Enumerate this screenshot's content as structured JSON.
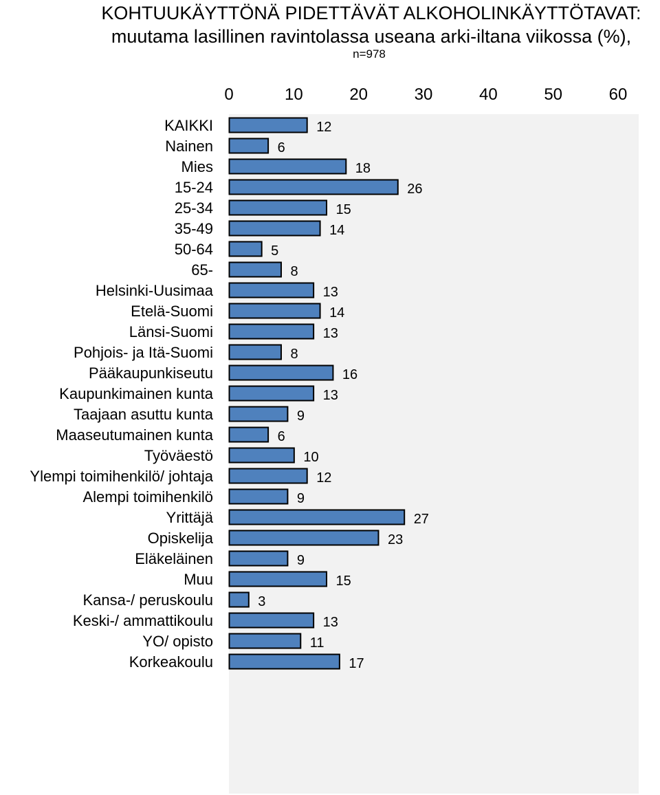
{
  "chart_data": {
    "type": "bar",
    "orientation": "horizontal",
    "title": "KOHTUUKÄYTTÖNÄ PIDETTÄVÄT ALKOHOLINKÄYTTÖTAVAT:",
    "subtitle": "muutama lasillinen ravintolassa useana arki-iltana viikossa (%),",
    "note": "n=978",
    "xlim": [
      0,
      60
    ],
    "xticks": [
      "0",
      "10",
      "20",
      "30",
      "40",
      "50",
      "60"
    ],
    "grid": false,
    "colors": {
      "bar": "#4f81bd",
      "bar_edge": "#000000",
      "plot_bg": "#f2f2f2"
    },
    "groups": [
      {
        "items": [
          {
            "label": "KAIKKI",
            "value": 12
          }
        ]
      },
      {
        "items": [
          {
            "label": "Nainen",
            "value": 6
          },
          {
            "label": "Mies",
            "value": 18
          }
        ]
      },
      {
        "items": [
          {
            "label": "15-24",
            "value": 26
          },
          {
            "label": "25-34",
            "value": 15
          },
          {
            "label": "35-49",
            "value": 14
          },
          {
            "label": "50-64",
            "value": 5
          },
          {
            "label": "65-",
            "value": 8
          }
        ]
      },
      {
        "items": [
          {
            "label": "Helsinki-Uusimaa",
            "value": 13
          },
          {
            "label": "Etelä-Suomi",
            "value": 14
          },
          {
            "label": "Länsi-Suomi",
            "value": 13
          },
          {
            "label": "Pohjois- ja Itä-Suomi",
            "value": 8
          }
        ]
      },
      {
        "items": [
          {
            "label": "Pääkaupunkiseutu",
            "value": 16
          },
          {
            "label": "Kaupunkimainen kunta",
            "value": 13
          },
          {
            "label": "Taajaan asuttu kunta",
            "value": 9
          },
          {
            "label": "Maaseutumainen kunta",
            "value": 6
          }
        ]
      },
      {
        "items": [
          {
            "label": "Työväestö",
            "value": 10
          },
          {
            "label": "Ylempi toimihenkilö/ johtaja",
            "value": 12
          },
          {
            "label": "Alempi toimihenkilö",
            "value": 9
          },
          {
            "label": "Yrittäjä",
            "value": 27
          },
          {
            "label": "Opiskelija",
            "value": 23
          },
          {
            "label": "Eläkeläinen",
            "value": 9
          },
          {
            "label": "Muu",
            "value": 15
          }
        ]
      },
      {
        "items": [
          {
            "label": "Kansa-/ peruskoulu",
            "value": 3
          },
          {
            "label": "Keski-/ ammattikoulu",
            "value": 13
          },
          {
            "label": "YO/ opisto",
            "value": 11
          },
          {
            "label": "Korkeakoulu",
            "value": 17
          }
        ]
      }
    ]
  }
}
